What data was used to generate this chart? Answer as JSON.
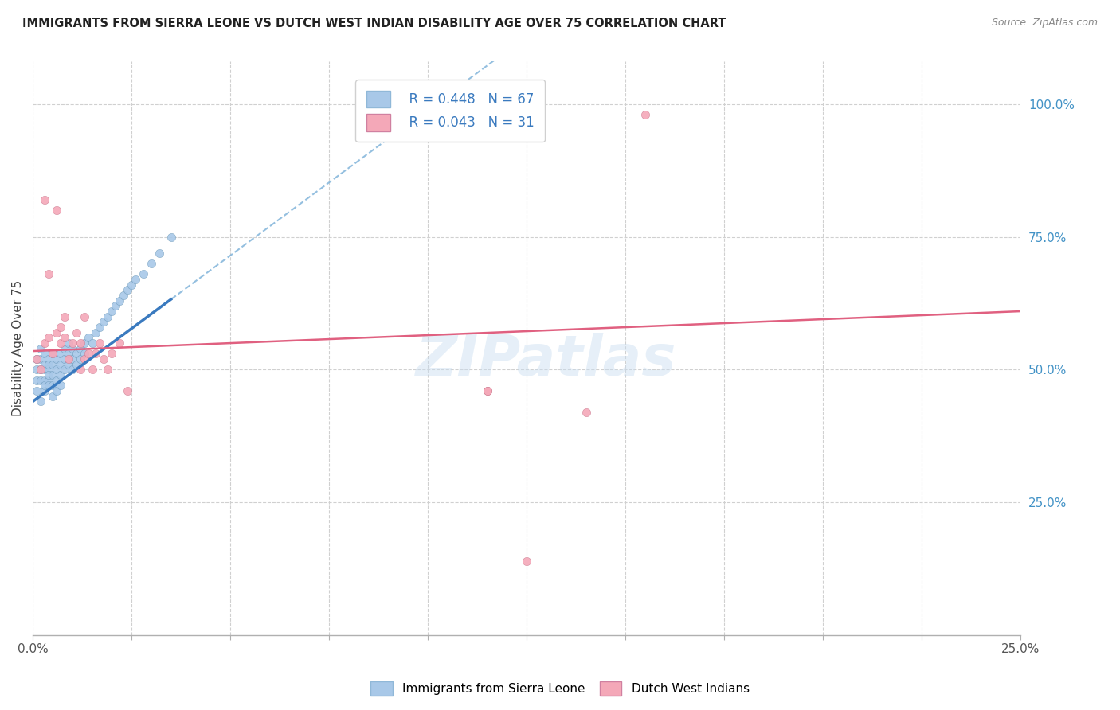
{
  "title": "IMMIGRANTS FROM SIERRA LEONE VS DUTCH WEST INDIAN DISABILITY AGE OVER 75 CORRELATION CHART",
  "source": "Source: ZipAtlas.com",
  "ylabel": "Disability Age Over 75",
  "xlim": [
    0.0,
    0.25
  ],
  "ylim": [
    0.0,
    1.08
  ],
  "ytick_vals": [
    0.25,
    0.5,
    0.75,
    1.0
  ],
  "ytick_labels": [
    "25.0%",
    "50.0%",
    "75.0%",
    "100.0%"
  ],
  "color_blue": "#a8c8e8",
  "color_pink": "#f4a8b8",
  "color_blue_line": "#3a7abf",
  "color_pink_line": "#e06080",
  "color_blue_dash": "#7ab0d8",
  "watermark": "ZIPatlas",
  "legend_label1": "Immigrants from Sierra Leone",
  "legend_label2": "Dutch West Indians",
  "legend_r1": "R = 0.448",
  "legend_n1": "N = 67",
  "legend_r2": "R = 0.043",
  "legend_n2": "N = 31",
  "sl_x": [
    0.001,
    0.001,
    0.001,
    0.001,
    0.002,
    0.002,
    0.002,
    0.002,
    0.002,
    0.003,
    0.003,
    0.003,
    0.003,
    0.003,
    0.003,
    0.004,
    0.004,
    0.004,
    0.004,
    0.004,
    0.004,
    0.005,
    0.005,
    0.005,
    0.005,
    0.005,
    0.006,
    0.006,
    0.006,
    0.006,
    0.007,
    0.007,
    0.007,
    0.007,
    0.008,
    0.008,
    0.008,
    0.009,
    0.009,
    0.009,
    0.01,
    0.01,
    0.01,
    0.011,
    0.011,
    0.012,
    0.012,
    0.013,
    0.013,
    0.014,
    0.015,
    0.016,
    0.017,
    0.018,
    0.019,
    0.02,
    0.021,
    0.022,
    0.023,
    0.024,
    0.025,
    0.026,
    0.028,
    0.03,
    0.032,
    0.035
  ],
  "sl_y": [
    0.48,
    0.5,
    0.52,
    0.46,
    0.5,
    0.52,
    0.54,
    0.48,
    0.44,
    0.46,
    0.48,
    0.5,
    0.51,
    0.53,
    0.47,
    0.48,
    0.5,
    0.52,
    0.47,
    0.49,
    0.51,
    0.49,
    0.51,
    0.53,
    0.47,
    0.45,
    0.5,
    0.52,
    0.48,
    0.46,
    0.51,
    0.49,
    0.53,
    0.47,
    0.52,
    0.5,
    0.54,
    0.53,
    0.51,
    0.55,
    0.52,
    0.5,
    0.54,
    0.53,
    0.51,
    0.54,
    0.52,
    0.55,
    0.53,
    0.56,
    0.55,
    0.57,
    0.58,
    0.59,
    0.6,
    0.61,
    0.62,
    0.63,
    0.64,
    0.65,
    0.66,
    0.67,
    0.68,
    0.7,
    0.72,
    0.75
  ],
  "dw_x": [
    0.001,
    0.002,
    0.003,
    0.003,
    0.004,
    0.004,
    0.005,
    0.006,
    0.006,
    0.007,
    0.007,
    0.008,
    0.008,
    0.009,
    0.01,
    0.011,
    0.012,
    0.012,
    0.013,
    0.013,
    0.014,
    0.015,
    0.016,
    0.017,
    0.018,
    0.019,
    0.02,
    0.022,
    0.024,
    0.115,
    0.14
  ],
  "dw_y": [
    0.52,
    0.5,
    0.55,
    0.82,
    0.56,
    0.68,
    0.53,
    0.8,
    0.57,
    0.55,
    0.58,
    0.6,
    0.56,
    0.52,
    0.55,
    0.57,
    0.5,
    0.55,
    0.52,
    0.6,
    0.53,
    0.5,
    0.53,
    0.55,
    0.52,
    0.5,
    0.53,
    0.55,
    0.46,
    0.46,
    0.42
  ],
  "dw_outlier_x": [
    0.115
  ],
  "dw_outlier_y": [
    0.46
  ],
  "dw_low_x": [
    0.125
  ],
  "dw_low_y": [
    0.14
  ],
  "sl_reg_slope": 5.5,
  "sl_reg_intercept": 0.44,
  "dw_reg_slope": 0.3,
  "dw_reg_intercept": 0.535
}
